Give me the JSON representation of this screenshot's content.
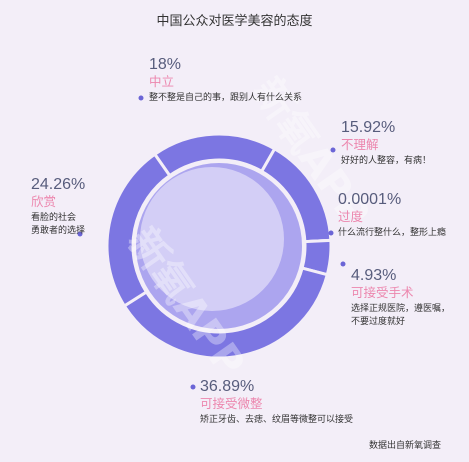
{
  "watermark": "新氧APP",
  "colors": {
    "background": "#f3eef8",
    "ring": "#7c76e2",
    "inner_dark": "#aca5ef",
    "inner_light": "#d3cef6",
    "marker": "#6b65d6",
    "percent_text": "#575c7c",
    "category_text": "#ec87ae",
    "body_text": "#333333"
  },
  "chart_data": {
    "type": "pie",
    "donut": true,
    "title": "中国公众对医学美容的态度",
    "categories": [
      "中立",
      "不理解",
      "过度",
      "可接受手术",
      "可接受微整",
      "欣赏"
    ],
    "values": [
      18,
      15.92,
      0.0001,
      4.93,
      36.89,
      24.26
    ],
    "value_labels": [
      "18%",
      "15.92%",
      "0.0001%",
      "4.93%",
      "36.89%",
      "24.26%"
    ],
    "descriptions": [
      [
        "整不整是自己的事，跟别人有什么关系"
      ],
      [
        "好好的人整容，有病！"
      ],
      [
        "什么流行整什么，整形上瘾"
      ],
      [
        "选择正规医院，遵医嘱，",
        "不要过度就好"
      ],
      [
        "矫正牙齿、去痣、纹眉等微整可以接受"
      ],
      [
        "看脸的社会",
        "勇敢者的选择"
      ]
    ],
    "source": "数据出自新氧调查"
  }
}
